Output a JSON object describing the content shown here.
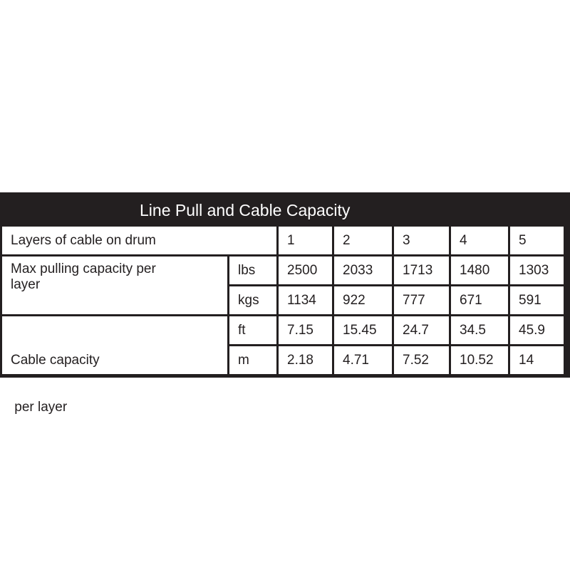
{
  "title": "Line Pull and Cable Capacity",
  "header": {
    "label": "Layers of cable on drum",
    "layers": [
      "1",
      "2",
      "3",
      "4",
      "5"
    ]
  },
  "pulling": {
    "label_line1": "Max pulling capacity per",
    "label_line2": "layer",
    "rows": [
      {
        "unit": "lbs",
        "values": [
          "2500",
          "2033",
          "1713",
          "1480",
          "1303"
        ]
      },
      {
        "unit": "kgs",
        "values": [
          "1134",
          "922",
          "777",
          "671",
          "591"
        ]
      }
    ]
  },
  "cable": {
    "label_line1": "Cable capacity",
    "label_line2": " per layer",
    "rows": [
      {
        "unit": "ft",
        "values": [
          "7.15",
          "15.45",
          "24.7",
          "34.5",
          "45.9"
        ]
      },
      {
        "unit": "m",
        "values": [
          "2.18",
          "4.71",
          "7.52",
          "10.52",
          "14"
        ]
      }
    ]
  }
}
